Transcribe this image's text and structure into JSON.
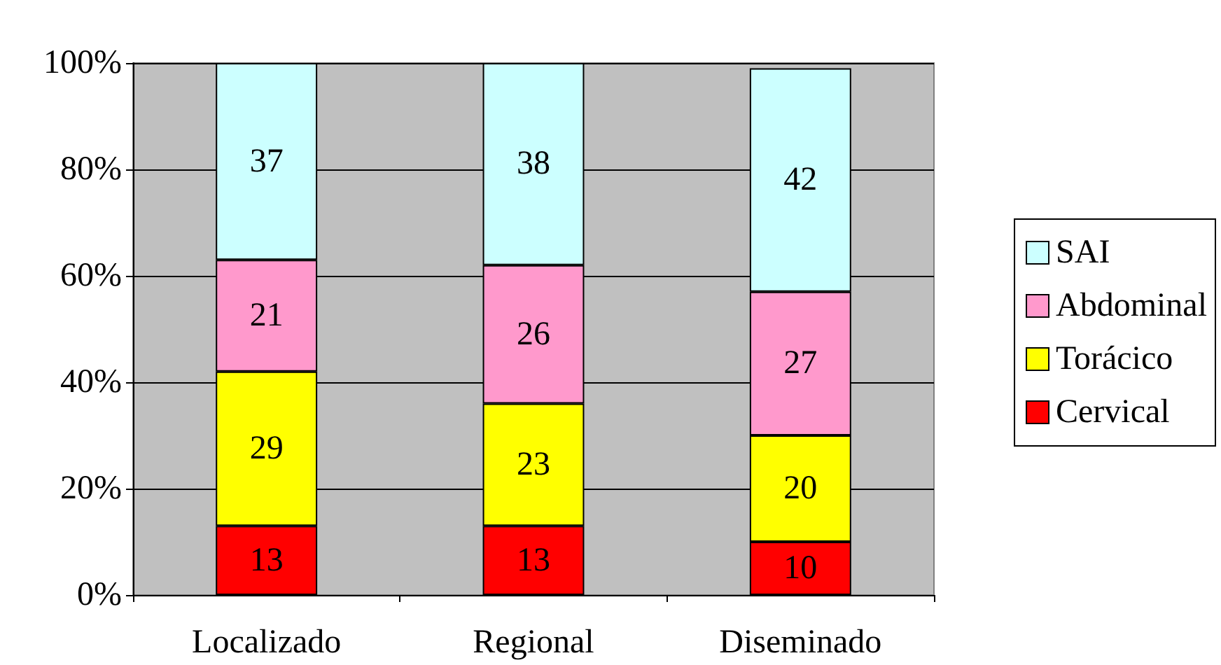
{
  "chart_data": {
    "type": "bar",
    "stacked": true,
    "categories": [
      "Localizado",
      "Regional",
      "Diseminado"
    ],
    "series": [
      {
        "name": "Cervical",
        "color": "#ff0000",
        "values": [
          13,
          13,
          10
        ]
      },
      {
        "name": "Torácico",
        "color": "#ffff00",
        "values": [
          29,
          23,
          20
        ]
      },
      {
        "name": "Abdominal",
        "color": "#ff99cc",
        "values": [
          21,
          26,
          27
        ]
      },
      {
        "name": "SAI",
        "color": "#ccffff",
        "values": [
          37,
          38,
          42
        ]
      }
    ],
    "ylim": [
      0,
      100
    ],
    "yticks": [
      {
        "value": 0,
        "label": "0%"
      },
      {
        "value": 20,
        "label": "20%"
      },
      {
        "value": 40,
        "label": "40%"
      },
      {
        "value": 60,
        "label": "60%"
      },
      {
        "value": 80,
        "label": "80%"
      },
      {
        "value": 100,
        "label": "100%"
      }
    ],
    "grid": "y",
    "legend": "right",
    "data_labels": true
  }
}
